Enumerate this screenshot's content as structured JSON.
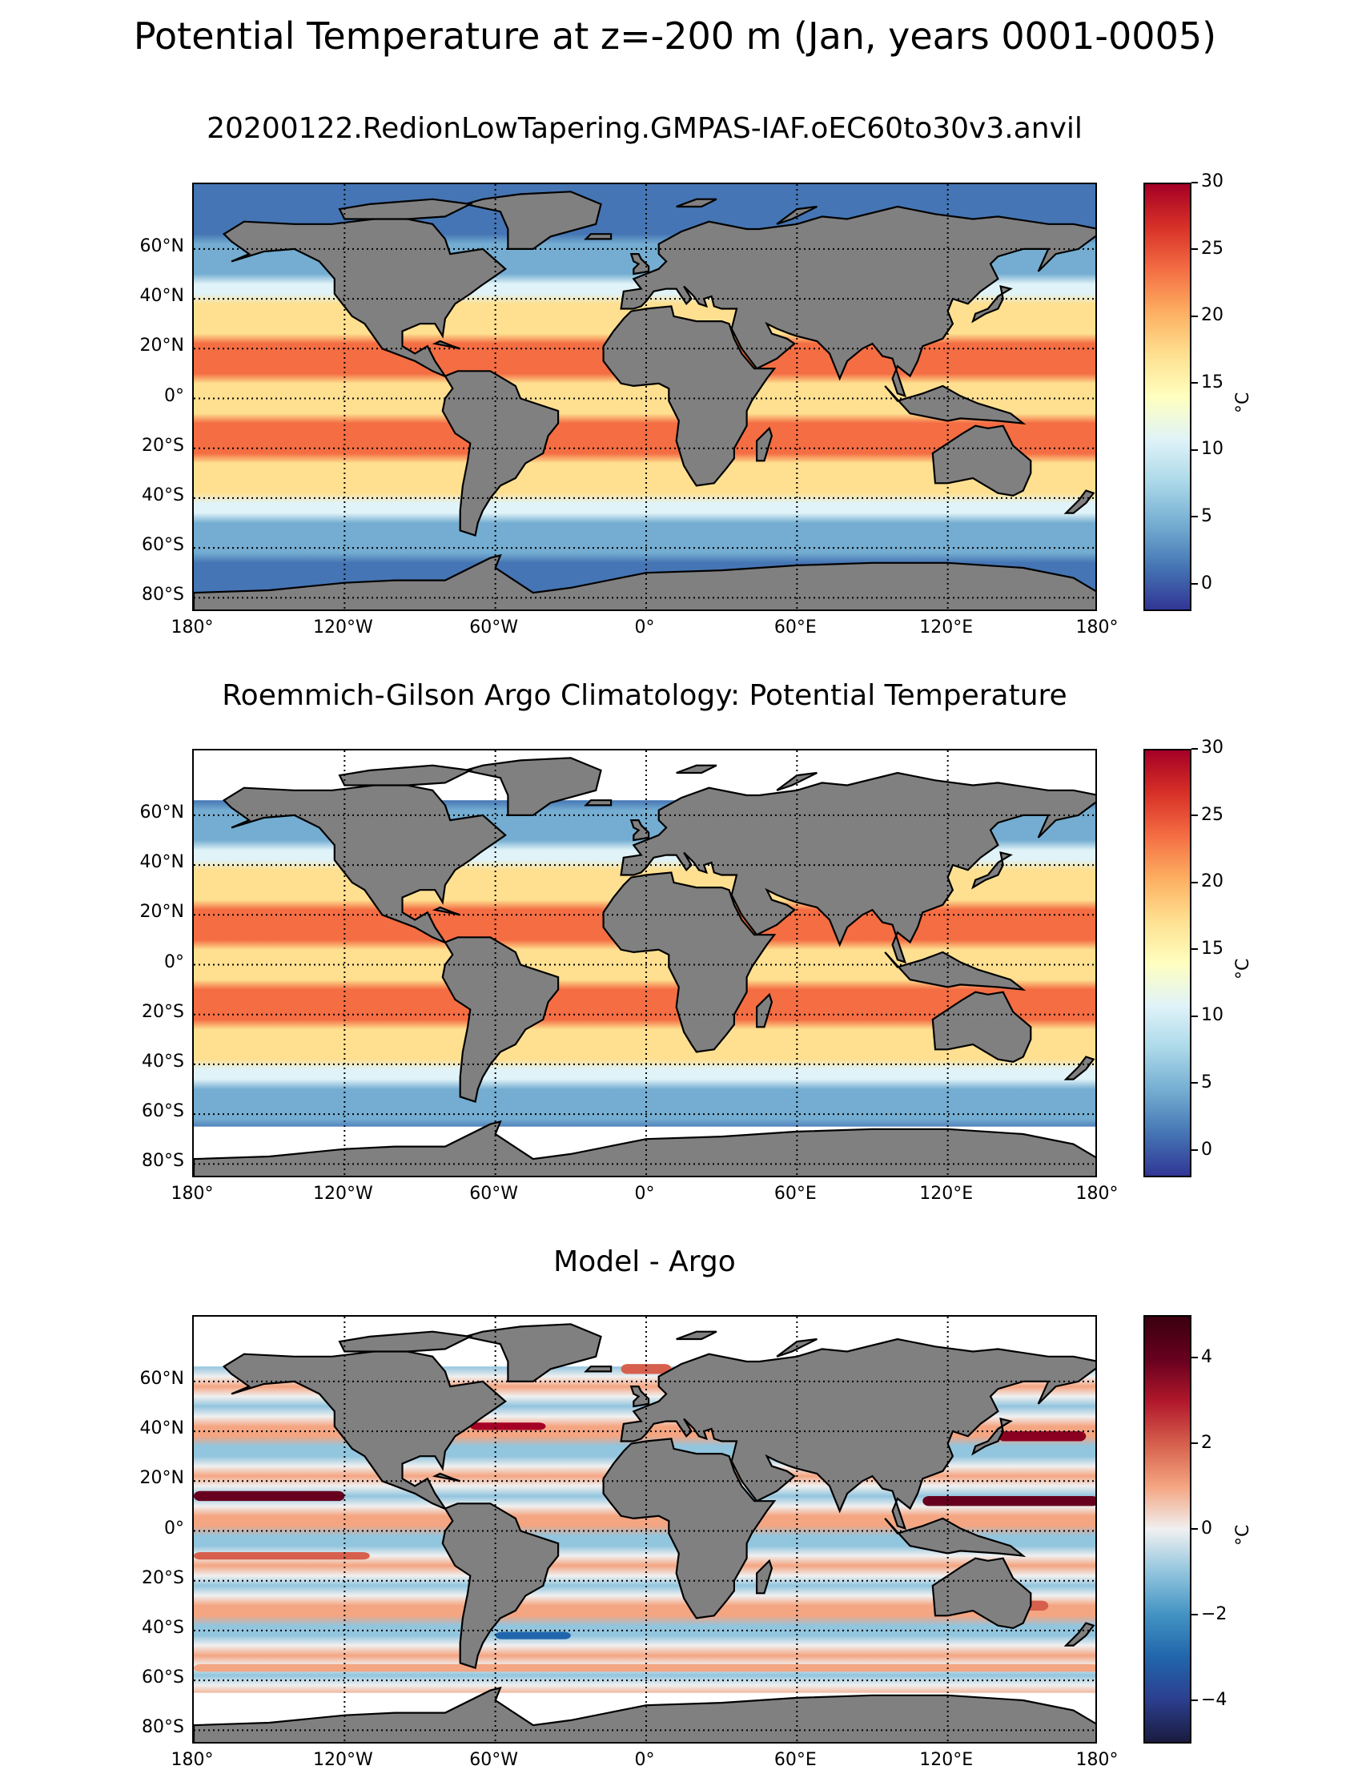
{
  "suptitle": "Potential Temperature at z=-200 m (Jan, years 0001-0005)",
  "panels": [
    {
      "title": "20200122.RedionLowTapering.GMPAS-IAF.oEC60to30v3.anvil",
      "colormap": "RdYlBu_r",
      "colorbar_ticks": [
        "30",
        "25",
        "20",
        "15",
        "10",
        "5",
        "0"
      ],
      "colorbar_range": [
        -2,
        30
      ],
      "unit": "°C"
    },
    {
      "title": "Roemmich-Gilson Argo Climatology: Potential Temperature",
      "colormap": "RdYlBu_r",
      "colorbar_ticks": [
        "30",
        "25",
        "20",
        "15",
        "10",
        "5",
        "0"
      ],
      "colorbar_range": [
        -2,
        30
      ],
      "unit": "°C"
    },
    {
      "title": "Model - Argo",
      "colormap": "RdBu_r",
      "colorbar_ticks": [
        "4",
        "2",
        "0",
        "−2",
        "−4"
      ],
      "colorbar_range": [
        -5,
        5
      ],
      "unit": "°C"
    }
  ],
  "lat_labels": [
    "60°N",
    "40°N",
    "20°N",
    "0°",
    "20°S",
    "40°S",
    "60°S",
    "80°S"
  ],
  "lon_labels": [
    "180°",
    "120°W",
    "60°W",
    "0°",
    "60°E",
    "120°E",
    "180°"
  ],
  "colors": {
    "land": "#808080",
    "warm": "#d73027",
    "cold": "#313695"
  }
}
